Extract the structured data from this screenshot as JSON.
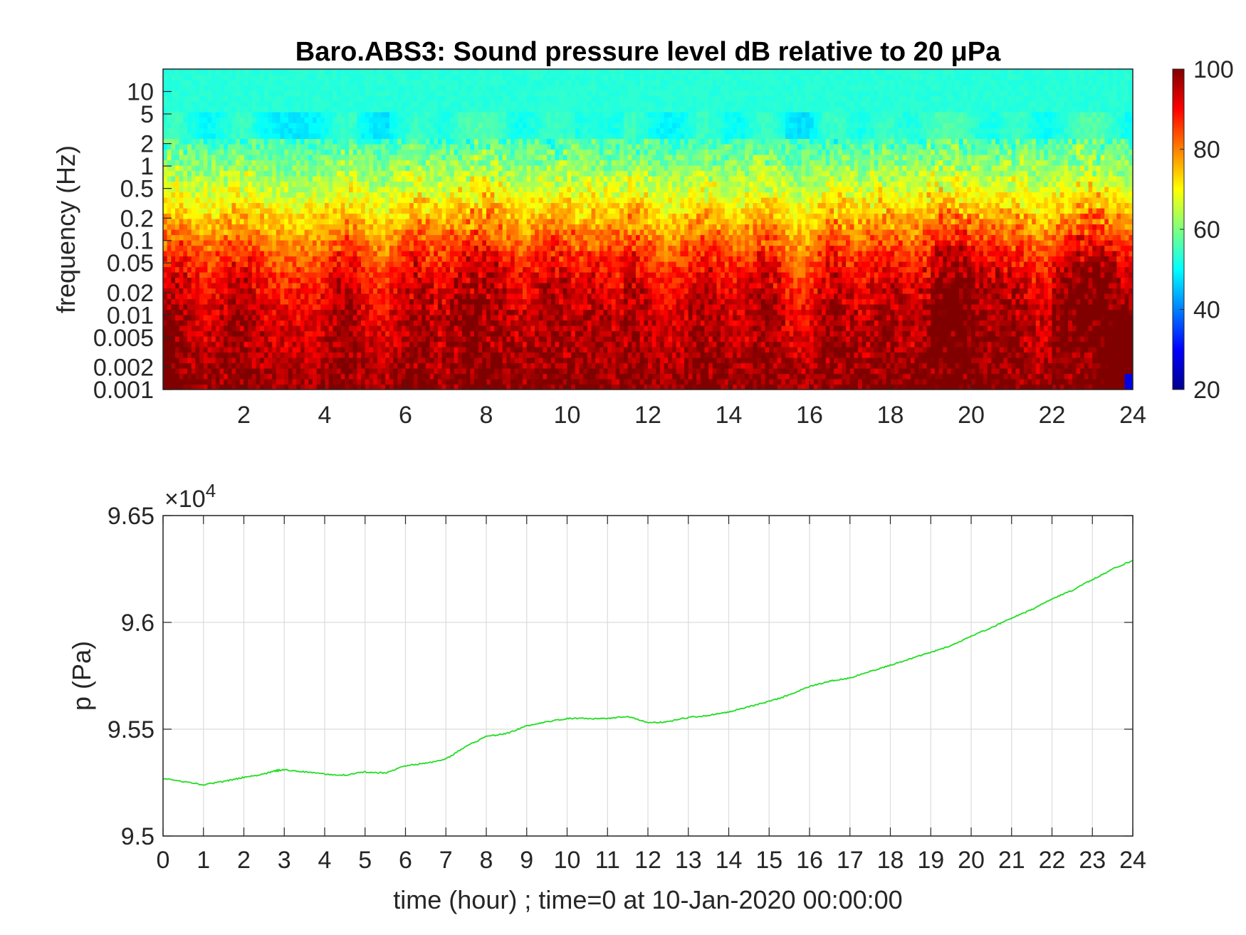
{
  "figure": {
    "background": "#ffffff"
  },
  "chart_data": [
    {
      "type": "heatmap",
      "title": "Baro.ABS3: Sound pressure level dB relative to 20 μPa",
      "ylabel": "frequency (Hz)",
      "xlabel": "",
      "x_scale": "linear",
      "y_scale": "log",
      "xlim": [
        0,
        24
      ],
      "ylim": [
        0.001,
        20
      ],
      "x_ticks": [
        2,
        4,
        6,
        8,
        10,
        12,
        14,
        16,
        18,
        20,
        22,
        24
      ],
      "x_tick_labels": [
        "2",
        "4",
        "6",
        "8",
        "10",
        "12",
        "14",
        "16",
        "18",
        "20",
        "22",
        "24"
      ],
      "y_ticks": [
        0.001,
        0.002,
        0.005,
        0.01,
        0.02,
        0.05,
        0.1,
        0.2,
        0.5,
        1,
        2,
        5,
        10
      ],
      "y_tick_labels": [
        "0.001",
        "0.002",
        "0.005",
        "0.01",
        "0.02",
        "0.05",
        "0.1",
        "0.2",
        "0.5",
        "1",
        "2",
        "5",
        "10"
      ],
      "colormap": "jet",
      "colorbar": {
        "range": [
          20,
          100
        ],
        "ticks": [
          20,
          40,
          60,
          80,
          100
        ],
        "tick_labels": [
          "20",
          "40",
          "60",
          "80",
          "100"
        ]
      },
      "grid": false
    },
    {
      "type": "line",
      "title": "",
      "xlabel": "time (hour) ; time=0 at 10-Jan-2020 00:00:00",
      "ylabel": "p (Pa)",
      "exponent_label": "×10",
      "exponent_power": "4",
      "xlim": [
        0,
        24
      ],
      "ylim": [
        95000,
        96500
      ],
      "x_ticks": [
        0,
        1,
        2,
        3,
        4,
        5,
        6,
        7,
        8,
        9,
        10,
        11,
        12,
        13,
        14,
        15,
        16,
        17,
        18,
        19,
        20,
        21,
        22,
        23,
        24
      ],
      "x_tick_labels": [
        "0",
        "1",
        "2",
        "3",
        "4",
        "5",
        "6",
        "7",
        "8",
        "9",
        "10",
        "11",
        "12",
        "13",
        "14",
        "15",
        "16",
        "17",
        "18",
        "19",
        "20",
        "21",
        "22",
        "23",
        "24"
      ],
      "y_ticks": [
        95000,
        95500,
        96000,
        96500
      ],
      "y_tick_labels": [
        "9.5",
        "9.55",
        "9.6",
        "9.65"
      ],
      "grid": true,
      "series": [
        {
          "color": "#22dd22",
          "x": [
            0,
            0.5,
            1,
            1.5,
            2,
            2.5,
            2.75,
            3,
            3.5,
            4,
            4.5,
            5,
            5.5,
            6,
            6.5,
            7,
            7.5,
            8,
            8.5,
            9,
            9.5,
            10,
            10.5,
            11,
            11.5,
            12,
            12.5,
            13,
            13.5,
            14,
            14.5,
            15,
            15.5,
            16,
            16.5,
            17,
            17.5,
            18,
            18.5,
            19,
            19.5,
            20,
            20.5,
            21,
            21.5,
            22,
            22.5,
            23,
            23.5,
            24
          ],
          "y": [
            95270,
            95255,
            95240,
            95255,
            95275,
            95290,
            95305,
            95310,
            95300,
            95290,
            95285,
            95300,
            95295,
            95330,
            95340,
            95360,
            95420,
            95465,
            95480,
            95515,
            95535,
            95550,
            95550,
            95550,
            95560,
            95530,
            95535,
            95555,
            95565,
            95580,
            95605,
            95630,
            95660,
            95700,
            95725,
            95740,
            95770,
            95800,
            95830,
            95860,
            95890,
            95935,
            95975,
            96020,
            96060,
            96110,
            96150,
            96200,
            96250,
            96290
          ]
        }
      ]
    }
  ]
}
